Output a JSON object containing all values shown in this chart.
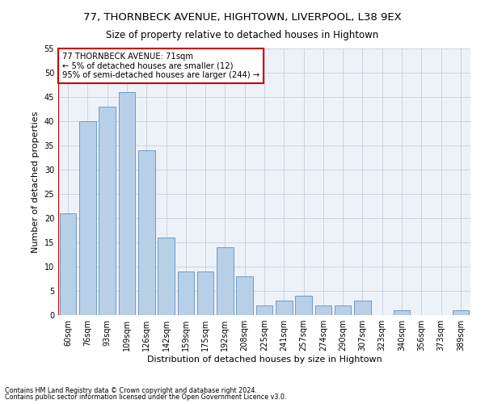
{
  "title1": "77, THORNBECK AVENUE, HIGHTOWN, LIVERPOOL, L38 9EX",
  "title2": "Size of property relative to detached houses in Hightown",
  "xlabel": "Distribution of detached houses by size in Hightown",
  "ylabel": "Number of detached properties",
  "categories": [
    "60sqm",
    "76sqm",
    "93sqm",
    "109sqm",
    "126sqm",
    "142sqm",
    "159sqm",
    "175sqm",
    "192sqm",
    "208sqm",
    "225sqm",
    "241sqm",
    "257sqm",
    "274sqm",
    "290sqm",
    "307sqm",
    "323sqm",
    "340sqm",
    "356sqm",
    "373sqm",
    "389sqm"
  ],
  "values": [
    21,
    40,
    43,
    46,
    34,
    16,
    9,
    9,
    14,
    8,
    2,
    3,
    4,
    2,
    2,
    3,
    0,
    1,
    0,
    0,
    1
  ],
  "bar_color": "#b8cfe8",
  "bar_edge_color": "#6090c0",
  "annotation_text": "77 THORNBECK AVENUE: 71sqm\n← 5% of detached houses are smaller (12)\n95% of semi-detached houses are larger (244) →",
  "annotation_box_color": "#ffffff",
  "annotation_box_edge_color": "#cc0000",
  "vline_color": "#cc0000",
  "ylim": [
    0,
    55
  ],
  "yticks": [
    0,
    5,
    10,
    15,
    20,
    25,
    30,
    35,
    40,
    45,
    50,
    55
  ],
  "footer1": "Contains HM Land Registry data © Crown copyright and database right 2024.",
  "footer2": "Contains public sector information licensed under the Open Government Licence v3.0.",
  "plot_bg_color": "#edf2f9",
  "title1_fontsize": 9.5,
  "title2_fontsize": 8.5,
  "tick_fontsize": 7,
  "ylabel_fontsize": 8,
  "xlabel_fontsize": 8,
  "footer_fontsize": 5.8,
  "annotation_fontsize": 7.2
}
